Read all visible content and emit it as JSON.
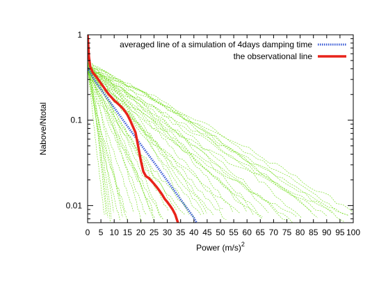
{
  "chart_data": {
    "type": "line",
    "xlabel": "Power (m/s)",
    "xlabel_superscript": "2",
    "ylabel": "Nabove/Ntotal",
    "xlim": [
      0,
      100
    ],
    "ylim": [
      0.0063,
      1
    ],
    "y_scale": "log",
    "x_ticks": [
      0,
      5,
      10,
      15,
      20,
      25,
      30,
      35,
      40,
      45,
      50,
      55,
      60,
      65,
      70,
      75,
      80,
      85,
      90,
      95,
      100
    ],
    "y_ticks": [
      {
        "value": 1,
        "label": "1"
      },
      {
        "value": 0.1,
        "label": "0.1"
      },
      {
        "value": 0.01,
        "label": "0.01"
      }
    ],
    "grid": false,
    "legend_position": "top-right",
    "colors": {
      "simulations": "#7ee02e",
      "averaged": "#3a5bd6",
      "observational": "#e8231a",
      "axis": "#000000"
    },
    "series": [
      {
        "name": "averaged line of a simulation of 4days damping time",
        "style": "dotted",
        "color": "#3a5bd6",
        "x": [
          0,
          1,
          3,
          5,
          8,
          10,
          15,
          20,
          25,
          30,
          35,
          40,
          41
        ],
        "y": [
          0.41,
          0.36,
          0.28,
          0.23,
          0.17,
          0.14,
          0.085,
          0.052,
          0.032,
          0.0195,
          0.0118,
          0.0072,
          0.0063
        ]
      },
      {
        "name": "the observational line",
        "style": "solid",
        "color": "#e8231a",
        "x": [
          0,
          0.5,
          1,
          2,
          3,
          4,
          5,
          6,
          7,
          8,
          9,
          10,
          11,
          12,
          13,
          14,
          15,
          16,
          17,
          18,
          19,
          20,
          21,
          22,
          23,
          24,
          25,
          26,
          27,
          28,
          29,
          30,
          31,
          32,
          33,
          33.5,
          34
        ],
        "y": [
          1.0,
          0.55,
          0.42,
          0.36,
          0.33,
          0.3,
          0.27,
          0.245,
          0.22,
          0.2,
          0.185,
          0.17,
          0.16,
          0.15,
          0.14,
          0.128,
          0.115,
          0.1,
          0.085,
          0.072,
          0.05,
          0.034,
          0.025,
          0.022,
          0.021,
          0.0195,
          0.018,
          0.0165,
          0.015,
          0.0135,
          0.012,
          0.011,
          0.01,
          0.009,
          0.0078,
          0.007,
          0.0063
        ]
      }
    ],
    "simulations": {
      "name": "simulation realizations",
      "count": 48,
      "start_fraction": 0.42,
      "x_end_range": [
        3,
        100
      ],
      "style": "dashed-thin"
    }
  }
}
